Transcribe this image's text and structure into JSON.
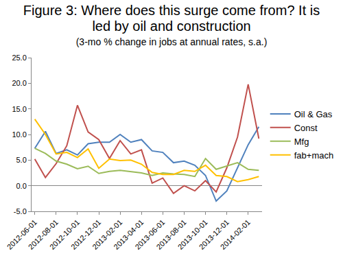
{
  "chart_data": {
    "type": "line",
    "title": "Figure 3: Where does this surge come from? It is led by oil and construction",
    "subtitle": "(3-mo % change in jobs at annual rates, s.a.)",
    "categories": [
      "2012-06-01",
      null,
      "2012-08-01",
      null,
      "2012-10-01",
      null,
      "2012-12-01",
      null,
      "2013-02-01",
      null,
      "2013-04-01",
      null,
      "2013-06-01",
      null,
      "2013-08-01",
      null,
      "2013-10-01",
      null,
      "2013-12-01",
      null,
      "2014-02-01",
      null
    ],
    "series": [
      {
        "name": "Oil & Gas",
        "color": "#4f81bd",
        "values": [
          7.3,
          10.6,
          6.3,
          7.0,
          6.0,
          8.2,
          8.5,
          8.5,
          10.0,
          8.5,
          9.0,
          6.8,
          6.5,
          4.5,
          4.8,
          4.0,
          2.0,
          -3.0,
          -1.0,
          3.5,
          8.0,
          11.5
        ]
      },
      {
        "name": "Const",
        "color": "#c0504d",
        "values": [
          5.2,
          1.6,
          4.3,
          7.8,
          15.7,
          10.5,
          9.0,
          5.3,
          8.8,
          6.2,
          7.0,
          0.5,
          1.5,
          -1.5,
          0.0,
          -1.0,
          1.0,
          -1.2,
          3.5,
          9.5,
          19.8,
          9.2
        ]
      },
      {
        "name": "Mfg",
        "color": "#9bbb59",
        "values": [
          7.3,
          6.3,
          4.8,
          4.2,
          3.3,
          3.8,
          2.4,
          2.8,
          3.0,
          2.8,
          2.5,
          2.0,
          2.5,
          2.3,
          2.2,
          1.8,
          5.3,
          3.2,
          3.8,
          4.5,
          3.2,
          3.0
        ]
      },
      {
        "name": "fab+mach",
        "color": "#ffc000",
        "values": [
          13.0,
          10.0,
          6.2,
          6.5,
          5.5,
          7.2,
          3.4,
          5.2,
          4.9,
          5.0,
          4.2,
          2.6,
          2.2,
          2.2,
          3.0,
          2.8,
          4.0,
          2.0,
          1.8,
          0.8,
          1.2,
          1.8
        ]
      }
    ],
    "ylim": [
      -5,
      25
    ],
    "yticks": [
      {
        "value": -5,
        "label": "-5.0"
      },
      {
        "value": 0,
        "label": "0.0"
      },
      {
        "value": 5,
        "label": "5.0"
      },
      {
        "value": 10,
        "label": "10.0"
      },
      {
        "value": 15,
        "label": "15.0"
      },
      {
        "value": 20,
        "label": "20.0"
      },
      {
        "value": 25,
        "label": "25.0"
      }
    ],
    "grid": false,
    "legend": "right"
  }
}
